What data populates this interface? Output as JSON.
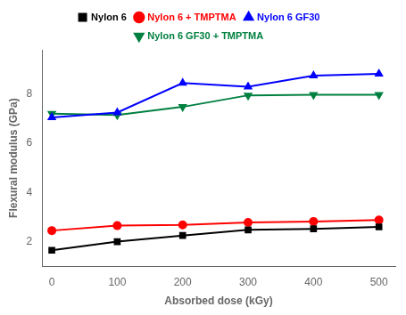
{
  "chart_data": {
    "type": "line",
    "x_label": "Absorbed dose (kGy)",
    "y_label": "Flexural modulus (GPa)",
    "x": [
      0,
      100,
      200,
      300,
      400,
      500
    ],
    "series": [
      {
        "name": "Nylon 6",
        "color": "#000000",
        "marker": "square",
        "line_style": "solid",
        "values": [
          1.65,
          2.0,
          2.25,
          2.48,
          2.52,
          2.6
        ]
      },
      {
        "name": "Nylon 6 + TMPTMA",
        "color": "#ff0000",
        "marker": "circle",
        "line_style": "solid",
        "values": [
          2.45,
          2.65,
          2.68,
          2.78,
          2.82,
          2.88
        ]
      },
      {
        "name": "Nylon 6 GF30",
        "color": "#0000ff",
        "marker": "triangle_up",
        "line_style": "solid",
        "values": [
          7.05,
          7.25,
          8.45,
          8.3,
          8.75,
          8.82
        ]
      },
      {
        "name": "Nylon 6 GF30 + TMPTMA",
        "color": "#008040",
        "marker": "triangle_down",
        "line_style": "solid",
        "values": [
          7.2,
          7.15,
          7.48,
          7.95,
          7.97,
          7.97
        ]
      }
    ],
    "xlim": [
      -15,
      525
    ],
    "xticks": [
      0,
      100,
      200,
      300,
      400,
      500
    ],
    "ylim": [
      1.0,
      9.8
    ],
    "yticks": [
      2,
      4,
      6,
      8
    ],
    "grid": false,
    "legend": "top"
  }
}
